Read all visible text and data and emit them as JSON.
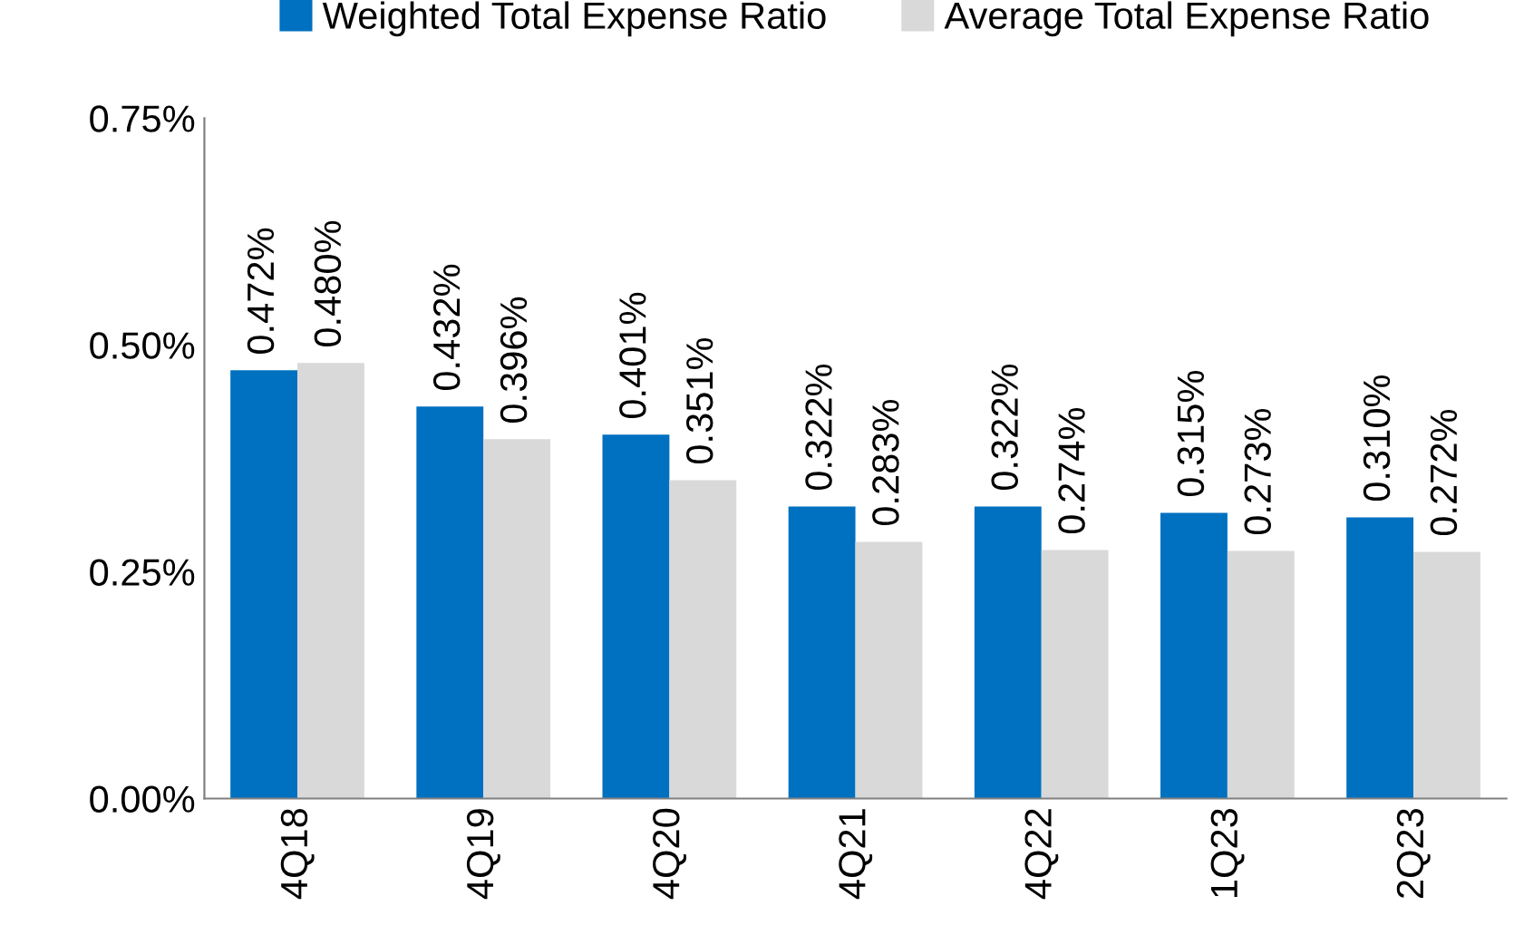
{
  "chart_data": {
    "type": "bar",
    "categories": [
      "4Q18",
      "4Q19",
      "4Q20",
      "4Q21",
      "4Q22",
      "1Q23",
      "2Q23"
    ],
    "series": [
      {
        "name": "Weighted Total Expense Ratio",
        "color": "#0070c0",
        "values": [
          0.472,
          0.432,
          0.401,
          0.322,
          0.322,
          0.315,
          0.31
        ],
        "value_labels": [
          "0.472%",
          "0.432%",
          "0.401%",
          "0.322%",
          "0.322%",
          "0.315%",
          "0.310%"
        ]
      },
      {
        "name": "Average Total Expense Ratio",
        "color": "#d9d9d9",
        "values": [
          0.48,
          0.396,
          0.351,
          0.283,
          0.274,
          0.273,
          0.272
        ],
        "value_labels": [
          "0.480%",
          "0.396%",
          "0.351%",
          "0.283%",
          "0.274%",
          "0.273%",
          "0.272%"
        ]
      }
    ],
    "ylim": [
      0,
      0.75
    ],
    "yticks": [
      {
        "value": 0,
        "label": "0.00%"
      },
      {
        "value": 0.25,
        "label": "0.25%"
      },
      {
        "value": 0.5,
        "label": "0.50%"
      },
      {
        "value": 0.75,
        "label": "0.75%"
      }
    ],
    "grid": false,
    "legend": "top"
  }
}
